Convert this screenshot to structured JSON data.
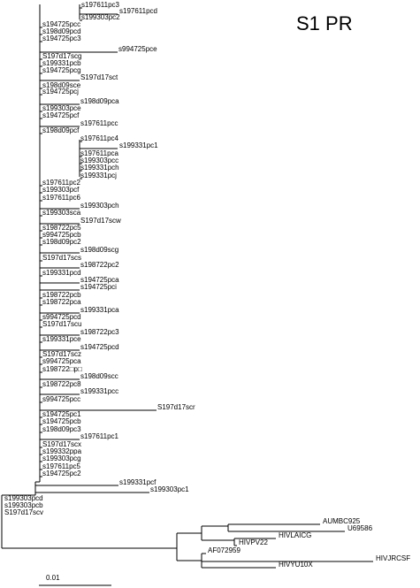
{
  "title": "S1 PR",
  "scale_label": "0.01",
  "taxa": [
    "s197611pc3",
    "s197611pcd",
    "s199303pc2",
    "s194725pcc",
    "s198d09pcd",
    "s194725pc3",
    "s994725pce",
    "S197d17scg",
    "s199331pcb",
    "s194725pcg",
    "S197d17sct",
    "s198d09sce",
    "s194725pcj",
    "s198d09pca",
    "s199303pce",
    "s194725pcf",
    "s197611pcc",
    "s198d09pcf",
    "s197611pc4",
    "s199331pc1",
    "s197611pca",
    "s199303pcc",
    "s199331pch",
    "s199331pcj",
    "s197611pc2",
    "s199303pcf",
    "s197611pc6",
    "s199303pch",
    "s199303sca",
    "S197d17scw",
    "s198722pc5",
    "s994725pcb",
    "s198d09pc2",
    "s198d09scg",
    "S197d17scs",
    "s198722pc2",
    "s199331pcd",
    "s194725pca",
    "s194725pci",
    "s198722pcb",
    "s198722pca",
    "s199331pca",
    "s994725pcd",
    "S197d17scu",
    "s198722pc3",
    "s199331pce",
    "s194725pcd",
    "S197d17scz",
    "s994725pca",
    "s198722□p□",
    "s198d09scc",
    "s198722pc8",
    "s199331pcc",
    "s994725pcc",
    "S197d17scr",
    "s194725pc1",
    "s194725pcb",
    "s198d09pc3",
    "s197611pc1",
    "S197d17scx",
    "s199332ppa",
    "s199303pcg",
    "s197611pc5",
    "s194725pc2",
    "s199331pcf",
    "s199303pc1",
    "s199303pcd",
    "s199303pcb",
    "S197d17scv",
    "AUMBC925",
    "U69586",
    "HIVLAICG",
    "HIVPV22",
    "AF072959",
    "HIVJRCSF",
    "HIVYU10X"
  ]
}
